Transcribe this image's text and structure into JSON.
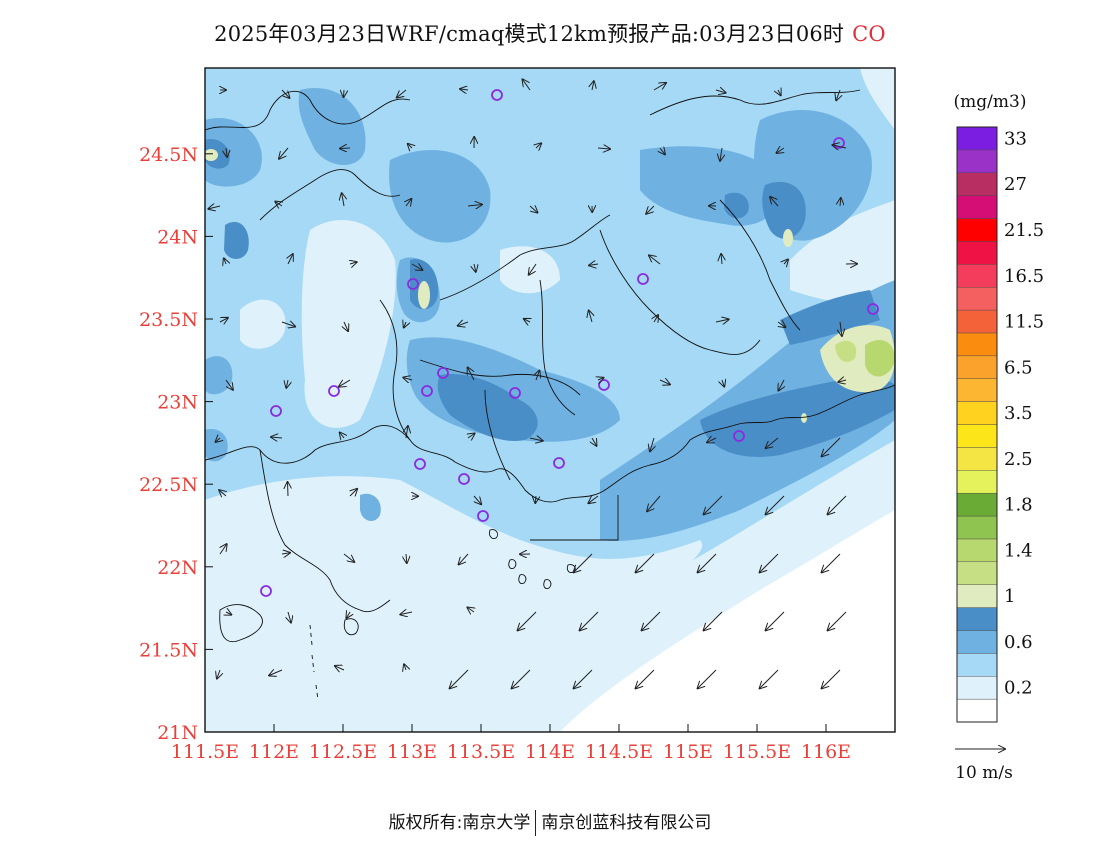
{
  "title": {
    "main": "2025年03月23日WRF/cmaq模式12km预报产品:03月23日06时",
    "species": "CO"
  },
  "axes": {
    "x_ticks": [
      "111.5E",
      "112E",
      "112.5E",
      "113E",
      "113.5E",
      "114E",
      "114.5E",
      "115E",
      "115.5E",
      "116E"
    ],
    "y_ticks": [
      "21N",
      "21.5N",
      "22N",
      "22.5N",
      "23N",
      "23.5N",
      "24N",
      "24.5N"
    ],
    "tick_color": "#e8403a"
  },
  "legend": {
    "unit": "(mg/m3)",
    "levels": [
      {
        "label": "",
        "color": "#ffffff"
      },
      {
        "label": "0.2",
        "color": "#dff1fb"
      },
      {
        "label": "",
        "color": "#a6d9f5"
      },
      {
        "label": "0.6",
        "color": "#6fb2e2"
      },
      {
        "label": "",
        "color": "#4a8ec8"
      },
      {
        "label": "1",
        "color": "#e0ecc0"
      },
      {
        "label": "",
        "color": "#c6df85"
      },
      {
        "label": "1.4",
        "color": "#b7d76f"
      },
      {
        "label": "",
        "color": "#8ec44f"
      },
      {
        "label": "1.8",
        "color": "#6aab35"
      },
      {
        "label": "",
        "color": "#e6f25c"
      },
      {
        "label": "2.5",
        "color": "#f4e545"
      },
      {
        "label": "",
        "color": "#fce61a"
      },
      {
        "label": "3.5",
        "color": "#ffd21f"
      },
      {
        "label": "",
        "color": "#fcb632"
      },
      {
        "label": "6.5",
        "color": "#fba22c"
      },
      {
        "label": "",
        "color": "#fa8c10"
      },
      {
        "label": "11.5",
        "color": "#f4623a"
      },
      {
        "label": "",
        "color": "#f4605f"
      },
      {
        "label": "16.5",
        "color": "#f43c5c"
      },
      {
        "label": "",
        "color": "#ee1245"
      },
      {
        "label": "21.5",
        "color": "#ff0000"
      },
      {
        "label": "",
        "color": "#d50e76"
      },
      {
        "label": "27",
        "color": "#b82d62"
      },
      {
        "label": "",
        "color": "#9a32c8"
      },
      {
        "label": "33",
        "color": "#7c1ee2"
      }
    ]
  },
  "wind_reference": {
    "label": "10 m/s"
  },
  "footer": {
    "left": "版权所有:南京大学",
    "right": "南京创蓝科技有限公司"
  },
  "colors": {
    "low": "#dff1fb",
    "mid_low": "#a6d9f5",
    "mid": "#6fb2e2",
    "high": "#4a8ec8",
    "pale_green": "#e0ecc0",
    "green": "#b7d76f",
    "station": "#8a2be2"
  }
}
